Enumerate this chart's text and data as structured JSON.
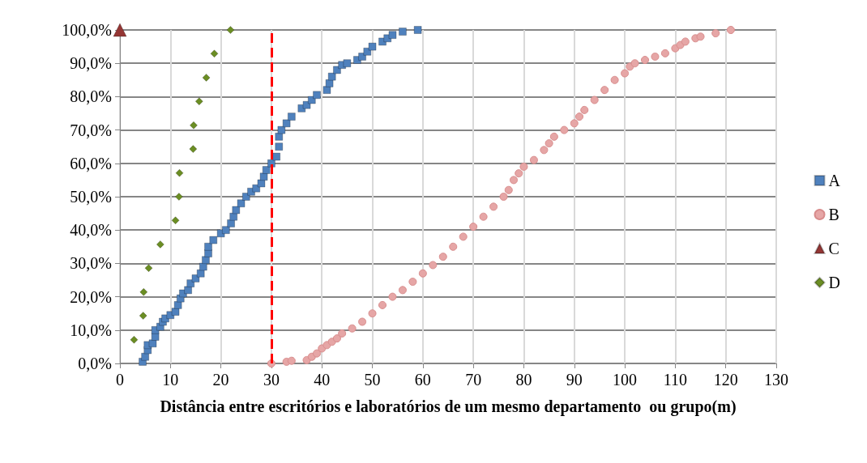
{
  "chart_data": {
    "type": "scatter",
    "xlabel": "Distância entre escritórios e laboratórios de um mesmo departamento  ou grupo(m)",
    "xlim": [
      0,
      130
    ],
    "xticks": [
      0,
      10,
      20,
      30,
      40,
      50,
      60,
      70,
      80,
      90,
      100,
      110,
      120,
      130
    ],
    "ylim": [
      0,
      100
    ],
    "yticks": [
      {
        "value": 0,
        "label": "0,0%"
      },
      {
        "value": 10,
        "label": "10,0%"
      },
      {
        "value": 20,
        "label": "20,0%"
      },
      {
        "value": 30,
        "label": "30,0%"
      },
      {
        "value": 40,
        "label": "40,0%"
      },
      {
        "value": 50,
        "label": "50,0%"
      },
      {
        "value": 60,
        "label": "60,0%"
      },
      {
        "value": 70,
        "label": "70,0%"
      },
      {
        "value": 80,
        "label": "80,0%"
      },
      {
        "value": 90,
        "label": "90,0%"
      },
      {
        "value": 100,
        "label": "100,0%"
      }
    ],
    "grid": true,
    "legend": "right",
    "ref_lines": [
      {
        "axis": "x",
        "value": 30,
        "color": "#ff0000",
        "line_style": "dashed"
      }
    ],
    "series": [
      {
        "name": "A",
        "color": "#4f81bd",
        "marker": "square",
        "x": [
          4.5,
          5,
          5.5,
          5.5,
          6.5,
          7,
          7,
          8,
          8.5,
          9,
          10,
          11,
          11.5,
          12,
          12.5,
          13.5,
          14,
          15,
          16,
          16.5,
          17,
          17.5,
          17.5,
          18.5,
          20,
          21,
          22,
          22.5,
          23,
          24,
          25,
          26,
          27,
          28,
          28.5,
          29,
          30,
          31,
          31.5,
          31.5,
          32,
          33,
          34,
          36,
          37,
          38,
          39,
          41,
          41.5,
          42,
          43,
          44,
          45,
          47,
          48,
          49,
          50,
          52,
          53,
          54,
          56,
          59
        ],
        "values": [
          0.5,
          2,
          4,
          5.5,
          6,
          8,
          10,
          11,
          12.5,
          13.5,
          14.5,
          15.5,
          17.5,
          19.5,
          21,
          22,
          24,
          25.5,
          27,
          29,
          31,
          33,
          35,
          37,
          39,
          40,
          42,
          44,
          46,
          48,
          50,
          51.5,
          52.5,
          54,
          56,
          58,
          60,
          62,
          65,
          68,
          70,
          72,
          74,
          76.5,
          77.5,
          79,
          80.5,
          82,
          84,
          86,
          88,
          89.5,
          90,
          91,
          92,
          93.5,
          95,
          96.5,
          97.5,
          98.5,
          99.5,
          100
        ]
      },
      {
        "name": "B",
        "color": "#e6a6a6",
        "marker": "circle",
        "x": [
          30,
          33,
          34,
          37,
          38,
          39,
          40,
          41,
          42,
          43,
          44,
          46,
          48,
          50,
          52,
          54,
          56,
          58,
          60,
          62,
          64,
          66,
          68,
          70,
          72,
          74,
          76,
          77,
          78,
          79,
          80,
          82,
          84,
          85,
          86,
          88,
          90,
          91,
          92,
          94,
          96,
          98,
          100,
          101,
          102,
          104,
          106,
          108,
          110,
          111,
          112,
          114,
          115,
          118,
          121
        ],
        "values": [
          0,
          0.5,
          0.8,
          1,
          2,
          3,
          4.5,
          5.5,
          6.5,
          7.5,
          9,
          10.5,
          12.5,
          15,
          17.5,
          20,
          22,
          24.5,
          27,
          29.5,
          32,
          35,
          38,
          41,
          44,
          47,
          50,
          52,
          55,
          57,
          59,
          61,
          64,
          66,
          68,
          70,
          72,
          74,
          76,
          79,
          82,
          85,
          87,
          89,
          90,
          91,
          92,
          93,
          94.5,
          95.5,
          96.5,
          97.5,
          98,
          99,
          100
        ]
      },
      {
        "name": "C",
        "color": "#943634",
        "marker": "triangle",
        "x": [
          0
        ],
        "values": [
          100
        ]
      },
      {
        "name": "D",
        "color": "#6b8e23",
        "marker": "diamond",
        "x": [
          2.8,
          4.6,
          4.7,
          5.7,
          8,
          11,
          11.7,
          11.8,
          14.5,
          14.6,
          15.7,
          17.1,
          18.7,
          21.9
        ],
        "values": [
          7.1,
          14.3,
          21.4,
          28.6,
          35.7,
          42.9,
          50,
          57.1,
          64.3,
          71.4,
          78.6,
          85.7,
          92.9,
          100
        ]
      }
    ]
  }
}
